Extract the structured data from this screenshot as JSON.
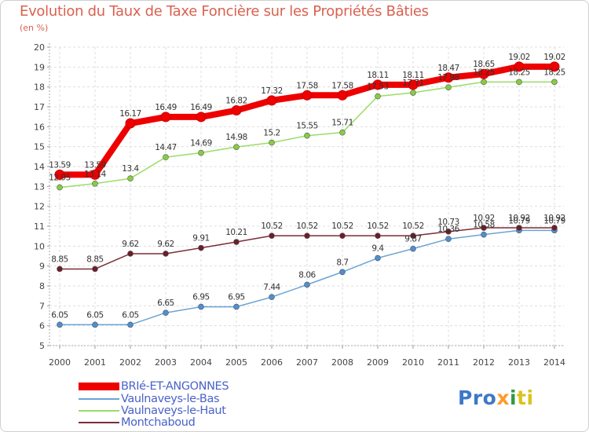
{
  "chart_data": {
    "type": "line",
    "title": "Evolution du Taux de Taxe Foncière sur les Propriétés Bâties",
    "ylabel": "(en %)",
    "xlabel": "",
    "x": [
      "2000",
      "2001",
      "2002",
      "2003",
      "2004",
      "2005",
      "2006",
      "2007",
      "2008",
      "2009",
      "2010",
      "2011",
      "2012",
      "2013",
      "2014"
    ],
    "ylim": [
      5,
      20
    ],
    "yticks": [
      "5",
      "6",
      "7",
      "8",
      "9",
      "10",
      "11",
      "12",
      "13",
      "14",
      "15",
      "16",
      "17",
      "18",
      "19",
      "20"
    ],
    "grid": true,
    "series": [
      {
        "name": "BRIé-ET-ANGONNES",
        "color": "#ee0000",
        "marker": "#ee0000",
        "values": [
          13.59,
          13.59,
          16.17,
          16.49,
          16.49,
          16.82,
          17.32,
          17.58,
          17.58,
          18.11,
          18.11,
          18.47,
          18.65,
          19.02,
          19.02
        ],
        "labels": [
          "13.59",
          "13.59",
          "16.17",
          "16.49",
          "16.49",
          "16.82",
          "17.32",
          "17.58",
          "17.58",
          "18.11",
          "18.11",
          "18.47",
          "18.65",
          "19.02",
          "19.02"
        ]
      },
      {
        "name": "Vaulnaveys-le-Bas",
        "color": "#6aa4d4",
        "marker": "#4f8fd0",
        "values": [
          6.05,
          6.05,
          6.05,
          6.65,
          6.95,
          6.95,
          7.44,
          8.06,
          8.7,
          9.4,
          9.87,
          10.36,
          10.58,
          10.79,
          10.79
        ],
        "labels": [
          "6.05",
          "6.05",
          "6.05",
          "6.65",
          "6.95",
          "6.95",
          "7.44",
          "8.06",
          "8.7",
          "9.4",
          "9.87",
          "10.36",
          "10.58",
          "10.79",
          "10.79"
        ]
      },
      {
        "name": "Vaulnaveys-le-Haut",
        "color": "#99dd66",
        "marker": "#88cc44",
        "values": [
          12.95,
          13.14,
          13.4,
          14.47,
          14.69,
          14.98,
          15.2,
          15.55,
          15.71,
          17.53,
          17.71,
          17.98,
          18.25,
          18.25,
          18.25
        ],
        "labels": [
          "12.95",
          "13.14",
          "13.4",
          "14.47",
          "14.69",
          "14.98",
          "15.2",
          "15.55",
          "15.71",
          "17.53",
          "17.71",
          "17.98",
          "18.25",
          "18.25",
          "18.25"
        ]
      },
      {
        "name": "Montchaboud",
        "color": "#7a2e36",
        "marker": "#6a1f28",
        "values": [
          8.85,
          8.85,
          9.62,
          9.62,
          9.91,
          10.21,
          10.52,
          10.52,
          10.52,
          10.52,
          10.52,
          10.73,
          10.92,
          10.92,
          10.92
        ],
        "labels": [
          "8.85",
          "8.85",
          "9.62",
          "9.62",
          "9.91",
          "10.21",
          "10.52",
          "10.52",
          "10.52",
          "10.52",
          "10.52",
          "10.73",
          "10.92",
          "10.92",
          "10.92"
        ]
      }
    ]
  },
  "logo": {
    "p1": "Pro",
    "p2": "x",
    "p3": "i",
    "p4": "ti"
  }
}
